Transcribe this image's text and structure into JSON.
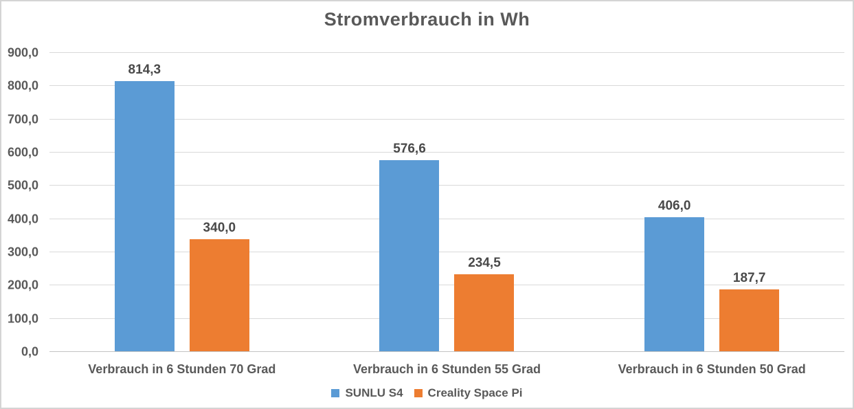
{
  "title": "Stromverbrauch in Wh",
  "colors": {
    "series_blue": "#5B9BD5",
    "series_orange": "#ED7D31",
    "gridline": "#D9D9D9",
    "axis_text": "#595959",
    "data_label_text": "#494949",
    "background": "#FFFFFF",
    "border": "#D4D4D4"
  },
  "chart_data": {
    "type": "bar",
    "title": "Stromverbrauch in Wh",
    "xlabel": "",
    "ylabel": "",
    "categories": [
      "Verbrauch in 6 Stunden 70 Grad",
      "Verbrauch in 6 Stunden 55 Grad",
      "Verbrauch in 6 Stunden 50 Grad"
    ],
    "series": [
      {
        "name": "SUNLU S4",
        "color": "#5B9BD5",
        "values": [
          814.3,
          576.6,
          406.0
        ],
        "display_values": [
          "814,3",
          "576,6",
          "406,0"
        ]
      },
      {
        "name": "Creality Space Pi",
        "color": "#ED7D31",
        "values": [
          340.0,
          234.5,
          187.7
        ],
        "display_values": [
          "340,0",
          "234,5",
          "187,7"
        ]
      }
    ],
    "ylim": [
      0,
      900
    ],
    "ytick_step": 100,
    "ytick_labels": [
      "0,0",
      "100,0",
      "200,0",
      "300,0",
      "400,0",
      "500,0",
      "600,0",
      "700,0",
      "800,0",
      "900,0"
    ],
    "grid": true,
    "legend_position": "bottom",
    "decimal_separator": ","
  }
}
